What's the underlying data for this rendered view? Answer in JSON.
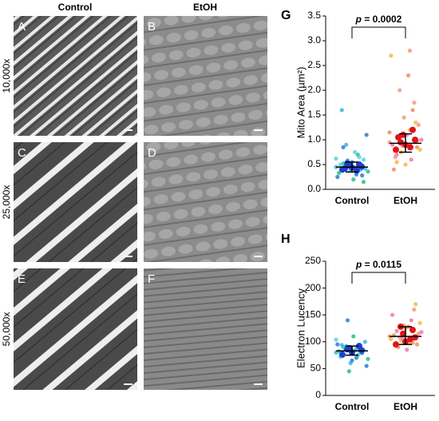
{
  "micrographs": {
    "columns": [
      "Control",
      "EtOH"
    ],
    "rows": [
      "10,000x",
      "25,000x",
      "50,000x"
    ],
    "panels": [
      "A",
      "B",
      "C",
      "D",
      "E",
      "F"
    ]
  },
  "chart_data": [
    {
      "type": "dot",
      "panel": "G",
      "ylabel": "Mito Area (µm²)",
      "categories": [
        "Control",
        "EtOH"
      ],
      "ylim": [
        0,
        3.5
      ],
      "yticks": [
        {
          "value": 0,
          "label": "0.0"
        },
        0.5,
        {
          "value": 1,
          "label": "1.0"
        },
        1.5,
        {
          "value": 2,
          "label": "2.0"
        },
        2.5,
        {
          "value": 3,
          "label": "3.0"
        },
        3.5
      ],
      "annotation": {
        "symbol": "p",
        "text": "= 0.0002"
      },
      "groups": [
        {
          "colors": [
            "#3fb3e8",
            "#2e7bd6",
            "#27c27a",
            "#5bd1e0"
          ],
          "mean_color": "#1f3fcf",
          "points": [
            0.45,
            0.3,
            0.52,
            0.6,
            0.38,
            0.25,
            0.7,
            0.48,
            0.42,
            0.55,
            0.33,
            0.65,
            0.9,
            1.1,
            0.2,
            0.5,
            0.4,
            0.58,
            0.36,
            0.75,
            1.6,
            0.28,
            0.46,
            0.62,
            0.44,
            0.85,
            0.15,
            0.53
          ],
          "means": [
            0.4,
            0.44,
            0.46,
            0.48,
            0.5,
            0.52,
            0.38,
            0.42
          ],
          "center": 0.45,
          "error_low": 0.35,
          "error_high": 0.55
        },
        {
          "colors": [
            "#f59a7a",
            "#f5b84a",
            "#f07aa8",
            "#f28c5c"
          ],
          "mean_color": "#e0141a",
          "points": [
            0.95,
            1.2,
            0.7,
            0.85,
            1.45,
            2.7,
            0.6,
            1.05,
            1.3,
            0.5,
            0.9,
            1.6,
            2.0,
            0.8,
            1.1,
            0.4,
            1.75,
            0.75,
            1.0,
            2.3,
            0.65,
            1.35,
            0.88,
            1.15,
            2.8,
            0.55,
            0.98
          ],
          "means": [
            0.8,
            0.9,
            1.0,
            1.1,
            1.2,
            0.95,
            0.85,
            1.05
          ],
          "center": 0.93,
          "error_low": 0.75,
          "error_high": 1.12
        }
      ]
    },
    {
      "type": "dot",
      "panel": "H",
      "ylabel": "Electron Lucency",
      "categories": [
        "Control",
        "EtOH"
      ],
      "ylim": [
        0,
        250
      ],
      "yticks": [
        0,
        50,
        100,
        150,
        200,
        250
      ],
      "annotation": {
        "symbol": "p",
        "text": "= 0.0115"
      },
      "groups": [
        {
          "colors": [
            "#3fb3e8",
            "#2e7bd6",
            "#27c27a",
            "#5bd1e0"
          ],
          "mean_color": "#1f3fcf",
          "points": [
            80,
            70,
            90,
            85,
            60,
            95,
            75,
            88,
            100,
            65,
            82,
            78,
            92,
            55,
            110,
            72,
            86,
            140,
            68,
            84,
            94,
            79,
            45,
            104,
            87
          ],
          "means": [
            76,
            80,
            84,
            88,
            92,
            86
          ],
          "center": 83,
          "error_low": 75,
          "error_high": 92
        },
        {
          "colors": [
            "#f59a7a",
            "#f5b84a",
            "#f07aa8",
            "#f28c5c"
          ],
          "mean_color": "#e0141a",
          "points": [
            110,
            100,
            120,
            95,
            130,
            105,
            140,
            90,
            115,
            125,
            150,
            98,
            108,
            135,
            85,
            112,
            160,
            102,
            118,
            128,
            96,
            170,
            106
          ],
          "means": [
            95,
            100,
            108,
            115,
            122,
            128,
            105
          ],
          "center": 110,
          "error_low": 95,
          "error_high": 128
        }
      ]
    }
  ]
}
